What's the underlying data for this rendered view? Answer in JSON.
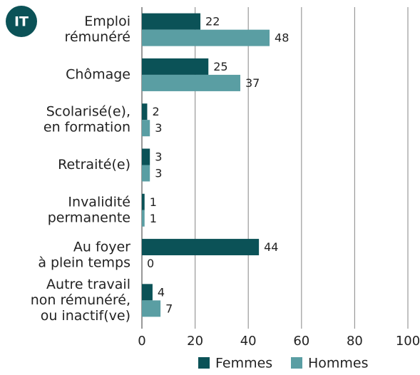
{
  "chart_data": {
    "type": "bar",
    "orientation": "horizontal",
    "badge": "IT",
    "categories": [
      [
        "Emploi",
        "rémunéré"
      ],
      [
        "Chômage"
      ],
      [
        "Scolarisé(e),",
        "en formation"
      ],
      [
        "Retraité(e)"
      ],
      [
        "Invalidité",
        "permanente"
      ],
      [
        "Au foyer",
        "à plein temps"
      ],
      [
        "Autre travail",
        "non rémunéré,",
        "ou inactif(ve)"
      ]
    ],
    "series": [
      {
        "name": "Femmes",
        "color": "#0b5257",
        "values": [
          22,
          25,
          2,
          3,
          1,
          44,
          4
        ]
      },
      {
        "name": "Hommes",
        "color": "#5a9ea3",
        "values": [
          48,
          37,
          3,
          3,
          1,
          0,
          7
        ]
      }
    ],
    "xlim": [
      0,
      100
    ],
    "xticks": [
      0,
      20,
      40,
      60,
      80,
      100
    ],
    "grid": true,
    "legend": "bottom"
  }
}
